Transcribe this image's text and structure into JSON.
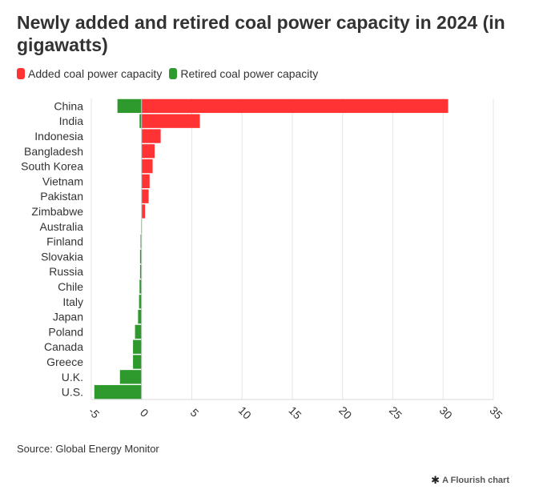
{
  "title": "Newly added and retired coal power capacity in 2024 (in gigawatts)",
  "legend": [
    {
      "label": "Added coal power capacity",
      "color": "#ff3333"
    },
    {
      "label": "Retired coal power capacity",
      "color": "#2e9a2e"
    }
  ],
  "source": "Source: Global Energy Monitor",
  "credit": {
    "icon": "asterisk-icon",
    "text": "A Flourish chart"
  },
  "chart_data": {
    "type": "bar",
    "orientation": "horizontal",
    "stacked": true,
    "title": "Newly added and retired coal power capacity in 2024 (in gigawatts)",
    "xlabel": "",
    "ylabel": "",
    "xlim": [
      -5,
      35
    ],
    "xticks": [
      "-5",
      "0",
      "5",
      "10",
      "15",
      "20",
      "25",
      "30",
      "35"
    ],
    "categories": [
      "China",
      "India",
      "Indonesia",
      "Bangladesh",
      "South Korea",
      "Vietnam",
      "Pakistan",
      "Zimbabwe",
      "Australia",
      "Finland",
      "Slovakia",
      "Russia",
      "Chile",
      "Italy",
      "Japan",
      "Poland",
      "Canada",
      "Greece",
      "U.K.",
      "U.S."
    ],
    "series": [
      {
        "name": "Added coal power capacity",
        "color": "#ff3333",
        "values": [
          30.5,
          5.8,
          1.9,
          1.3,
          1.1,
          0.8,
          0.7,
          0.35,
          0,
          0,
          0,
          0,
          0,
          0,
          0,
          0,
          0,
          0,
          0,
          0
        ]
      },
      {
        "name": "Retired coal power capacity",
        "color": "#2e9a2e",
        "values": [
          -2.4,
          -0.2,
          0,
          0,
          0,
          0,
          0,
          0,
          -0.05,
          -0.1,
          -0.15,
          -0.15,
          -0.2,
          -0.25,
          -0.35,
          -0.65,
          -0.85,
          -0.85,
          -2.15,
          -4.7
        ]
      }
    ],
    "grid": true,
    "legend_position": "top-left"
  }
}
